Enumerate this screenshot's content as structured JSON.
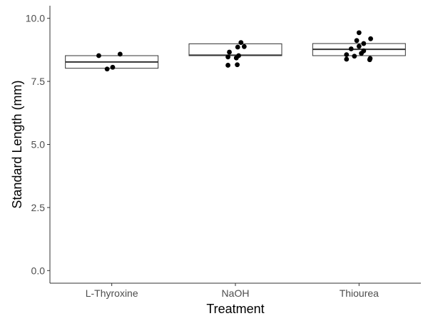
{
  "chart_data": {
    "type": "boxplot",
    "xlabel": "Treatment",
    "ylabel": "Standard Length (mm)",
    "ylim": [
      -0.5,
      10.5
    ],
    "yticks": [
      0.0,
      2.5,
      5.0,
      7.5,
      10.0
    ],
    "ytick_labels": [
      "0.0",
      "2.5",
      "5.0",
      "7.5",
      "10.0"
    ],
    "categories": [
      "L-Thyroxine",
      "NaOH",
      "Thiourea"
    ],
    "boxes": [
      {
        "category": "L-Thyroxine",
        "q1": 8.02,
        "median": 8.27,
        "q3": 8.52,
        "whisker_low": 8.02,
        "whisker_high": 8.52
      },
      {
        "category": "NaOH",
        "q1": 8.52,
        "median": 8.54,
        "q3": 8.99,
        "whisker_low": 8.4,
        "whisker_high": 8.99
      },
      {
        "category": "Thiourea",
        "q1": 8.52,
        "median": 8.77,
        "q3": 9.0,
        "whisker_low": 8.52,
        "whisker_high": 9.0
      }
    ],
    "points": [
      {
        "category": "L-Thyroxine",
        "jitter": -0.28,
        "y": 8.52
      },
      {
        "category": "L-Thyroxine",
        "jitter": 0.18,
        "y": 8.58
      },
      {
        "category": "L-Thyroxine",
        "jitter": -0.1,
        "y": 7.99
      },
      {
        "category": "L-Thyroxine",
        "jitter": 0.02,
        "y": 8.06
      },
      {
        "category": "NaOH",
        "jitter": 0.12,
        "y": 9.04
      },
      {
        "category": "NaOH",
        "jitter": 0.19,
        "y": 8.88
      },
      {
        "category": "NaOH",
        "jitter": 0.05,
        "y": 8.86
      },
      {
        "category": "NaOH",
        "jitter": -0.13,
        "y": 8.66
      },
      {
        "category": "NaOH",
        "jitter": 0.07,
        "y": 8.52
      },
      {
        "category": "NaOH",
        "jitter": 0.02,
        "y": 8.43
      },
      {
        "category": "NaOH",
        "jitter": -0.16,
        "y": 8.47
      },
      {
        "category": "NaOH",
        "jitter": -0.16,
        "y": 8.14
      },
      {
        "category": "NaOH",
        "jitter": 0.04,
        "y": 8.16
      },
      {
        "category": "Thiourea",
        "jitter": 0.0,
        "y": 9.43
      },
      {
        "category": "Thiourea",
        "jitter": 0.25,
        "y": 9.19
      },
      {
        "category": "Thiourea",
        "jitter": -0.05,
        "y": 9.12
      },
      {
        "category": "Thiourea",
        "jitter": 0.1,
        "y": 9.0
      },
      {
        "category": "Thiourea",
        "jitter": 0.0,
        "y": 8.89
      },
      {
        "category": "Thiourea",
        "jitter": -0.17,
        "y": 8.79
      },
      {
        "category": "Thiourea",
        "jitter": 0.1,
        "y": 8.71
      },
      {
        "category": "Thiourea",
        "jitter": 0.05,
        "y": 8.61
      },
      {
        "category": "Thiourea",
        "jitter": -0.27,
        "y": 8.56
      },
      {
        "category": "Thiourea",
        "jitter": -0.1,
        "y": 8.5
      },
      {
        "category": "Thiourea",
        "jitter": 0.24,
        "y": 8.41
      },
      {
        "category": "Thiourea",
        "jitter": -0.27,
        "y": 8.38
      },
      {
        "category": "Thiourea",
        "jitter": 0.23,
        "y": 8.36
      }
    ],
    "grid": false,
    "colors": {
      "box_stroke": "#333333",
      "box_fill": "#ffffff",
      "point": "#000000",
      "axis": "#333333"
    }
  }
}
